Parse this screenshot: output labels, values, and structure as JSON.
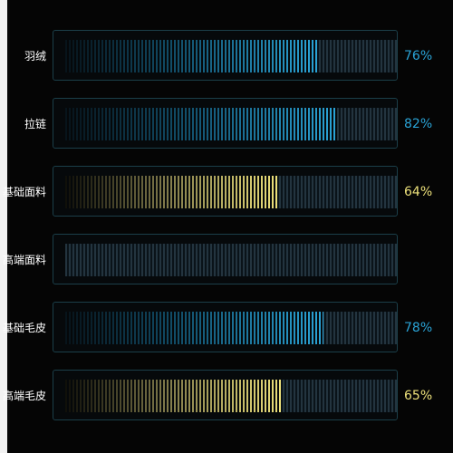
{
  "chart_data": {
    "type": "bar",
    "orientation": "horizontal",
    "categories": [
      "羽绒",
      "拉链",
      "基础面料",
      "高端面料",
      "基础毛皮",
      "高端毛皮"
    ],
    "values": [
      76,
      82,
      64,
      0,
      78,
      65
    ],
    "value_labels": [
      "76%",
      "82%",
      "64%",
      "",
      "78%",
      "65%"
    ],
    "unit": "%",
    "xlim": [
      0,
      100
    ],
    "grid": false,
    "legend": "none",
    "bar_colors": [
      "#2aa3d6",
      "#2aa3d6",
      "#ece07a",
      "#2aa3d6",
      "#2aa3d6",
      "#ece07a"
    ],
    "label_colors": [
      "#2aa3d6",
      "#2aa3d6",
      "#ece07a",
      "#2aa3d6",
      "#2aa3d6",
      "#ece07a"
    ],
    "track_color": "#23343f",
    "frame_color": "#1b3f49"
  }
}
